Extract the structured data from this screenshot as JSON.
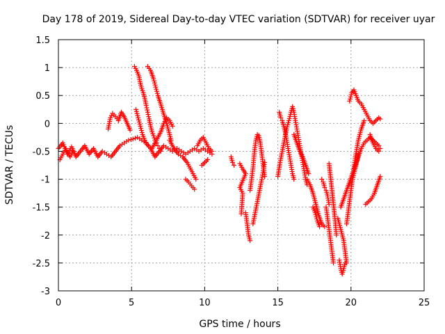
{
  "chart_data": {
    "type": "scatter",
    "title": "Day 178 of 2019, Sidereal Day-to-day VTEC variation (SDTVAR) for receiver uyar",
    "xlabel": "GPS time / hours",
    "ylabel": "SDTVAR / TECUs",
    "xlim": [
      0,
      25
    ],
    "ylim": [
      -3,
      1.5
    ],
    "xticks": [
      "0",
      "5",
      "10",
      "15",
      "20",
      "25"
    ],
    "yticks": [
      "1.5",
      "1",
      "0.5",
      "0",
      "-0.5",
      "-1",
      "-1.5",
      "-2",
      "-2.5",
      "-3"
    ],
    "grid": true,
    "marker": "+",
    "color": "#ff0000",
    "series": [
      {
        "name": "SDTVAR",
        "segments": [
          [
            [
              0.0,
              -0.45
            ],
            [
              0.3,
              -0.35
            ],
            [
              0.6,
              -0.55
            ],
            [
              0.9,
              -0.42
            ],
            [
              1.2,
              -0.6
            ],
            [
              1.5,
              -0.5
            ],
            [
              1.8,
              -0.4
            ],
            [
              2.1,
              -0.55
            ],
            [
              2.4,
              -0.45
            ],
            [
              2.7,
              -0.6
            ],
            [
              3.0,
              -0.5
            ],
            [
              3.3,
              -0.55
            ],
            [
              3.6,
              -0.6
            ],
            [
              3.9,
              -0.5
            ],
            [
              4.2,
              -0.4
            ],
            [
              4.5,
              -0.35
            ],
            [
              4.8,
              -0.3
            ],
            [
              5.1,
              -0.28
            ],
            [
              5.4,
              -0.25
            ],
            [
              5.7,
              -0.3
            ],
            [
              6.0,
              -0.35
            ],
            [
              6.3,
              -0.45
            ],
            [
              6.6,
              -0.6
            ],
            [
              6.9,
              -0.5
            ],
            [
              7.2,
              -0.4
            ],
            [
              7.5,
              -0.45
            ],
            [
              7.8,
              -0.5
            ],
            [
              8.1,
              -0.45
            ],
            [
              8.4,
              -0.5
            ],
            [
              8.7,
              -0.55
            ],
            [
              9.0,
              -0.5
            ],
            [
              9.3,
              -0.45
            ],
            [
              9.6,
              -0.5
            ],
            [
              9.9,
              -0.45
            ],
            [
              10.2,
              -0.5
            ],
            [
              10.5,
              -0.55
            ]
          ],
          [
            [
              3.4,
              -0.1
            ],
            [
              3.55,
              0.1
            ],
            [
              3.7,
              0.18
            ],
            [
              3.9,
              0.12
            ],
            [
              4.1,
              0.05
            ],
            [
              4.3,
              0.2
            ],
            [
              4.5,
              0.12
            ],
            [
              4.7,
              0.0
            ],
            [
              4.9,
              -0.12
            ]
          ],
          [
            [
              0.1,
              -0.65
            ],
            [
              0.3,
              -0.55
            ],
            [
              0.5,
              -0.45
            ],
            [
              0.8,
              -0.6
            ],
            [
              1.0,
              -0.5
            ]
          ],
          [
            [
              5.2,
              1.02
            ],
            [
              5.35,
              0.95
            ],
            [
              5.5,
              0.85
            ],
            [
              5.6,
              0.72
            ],
            [
              5.7,
              0.62
            ],
            [
              5.8,
              0.55
            ],
            [
              5.9,
              0.45
            ],
            [
              6.0,
              0.32
            ],
            [
              6.1,
              0.2
            ],
            [
              6.2,
              0.08
            ],
            [
              6.3,
              -0.05
            ],
            [
              6.4,
              -0.15
            ],
            [
              6.5,
              -0.22
            ],
            [
              6.6,
              -0.3
            ],
            [
              6.7,
              -0.35
            ],
            [
              6.8,
              -0.4
            ],
            [
              6.9,
              -0.45
            ],
            [
              7.0,
              -0.5
            ]
          ],
          [
            [
              6.1,
              1.02
            ],
            [
              6.3,
              0.95
            ],
            [
              6.5,
              0.8
            ],
            [
              6.65,
              0.65
            ],
            [
              6.8,
              0.5
            ],
            [
              6.95,
              0.38
            ],
            [
              7.1,
              0.25
            ],
            [
              7.25,
              0.12
            ],
            [
              7.4,
              0.0
            ],
            [
              7.5,
              -0.1
            ],
            [
              7.6,
              -0.2
            ],
            [
              7.7,
              -0.3
            ]
          ],
          [
            [
              5.3,
              0.25
            ],
            [
              5.45,
              0.1
            ],
            [
              5.6,
              -0.05
            ],
            [
              5.75,
              -0.2
            ],
            [
              5.9,
              -0.3
            ],
            [
              6.05,
              -0.38
            ]
          ],
          [
            [
              6.4,
              -0.45
            ],
            [
              6.7,
              -0.3
            ],
            [
              7.0,
              -0.15
            ],
            [
              7.2,
              0.0
            ],
            [
              7.4,
              0.1
            ],
            [
              7.6,
              0.05
            ],
            [
              7.8,
              -0.05
            ]
          ],
          [
            [
              7.6,
              -0.3
            ],
            [
              7.9,
              -0.45
            ],
            [
              8.2,
              -0.55
            ],
            [
              8.5,
              -0.6
            ],
            [
              8.8,
              -0.7
            ],
            [
              9.0,
              -0.8
            ],
            [
              9.2,
              -0.9
            ],
            [
              9.4,
              -1.0
            ]
          ],
          [
            [
              8.7,
              -1.0
            ],
            [
              8.9,
              -1.05
            ],
            [
              9.1,
              -1.12
            ],
            [
              9.3,
              -1.18
            ]
          ],
          [
            [
              9.5,
              -0.4
            ],
            [
              9.7,
              -0.3
            ],
            [
              9.9,
              -0.25
            ],
            [
              10.1,
              -0.35
            ],
            [
              10.3,
              -0.45
            ],
            [
              10.5,
              -0.5
            ]
          ],
          [
            [
              9.8,
              -0.75
            ],
            [
              10.0,
              -0.7
            ],
            [
              10.2,
              -0.65
            ]
          ],
          [
            [
              11.8,
              -0.6
            ],
            [
              11.9,
              -0.7
            ],
            [
              12.0,
              -0.75
            ]
          ],
          [
            [
              12.4,
              -0.72
            ],
            [
              12.6,
              -0.82
            ],
            [
              12.8,
              -0.9
            ],
            [
              12.4,
              -1.15
            ],
            [
              12.6,
              -1.25
            ],
            [
              12.5,
              -1.62
            ]
          ],
          [
            [
              12.8,
              -1.6
            ],
            [
              12.9,
              -1.8
            ],
            [
              13.0,
              -2.0
            ],
            [
              13.1,
              -2.1
            ]
          ],
          [
            [
              13.1,
              -1.2
            ],
            [
              13.2,
              -1.0
            ],
            [
              13.3,
              -0.8
            ],
            [
              13.4,
              -0.5
            ],
            [
              13.5,
              -0.3
            ],
            [
              13.6,
              -0.2
            ],
            [
              13.7,
              -0.22
            ],
            [
              13.8,
              -0.35
            ],
            [
              13.9,
              -0.55
            ],
            [
              14.0,
              -0.75
            ],
            [
              14.1,
              -0.95
            ]
          ],
          [
            [
              13.3,
              -1.8
            ],
            [
              13.45,
              -1.6
            ],
            [
              13.6,
              -1.4
            ],
            [
              13.75,
              -1.2
            ],
            [
              13.9,
              -1.0
            ],
            [
              14.0,
              -0.85
            ],
            [
              14.1,
              -0.7
            ]
          ],
          [
            [
              15.0,
              -0.95
            ],
            [
              15.15,
              -0.7
            ],
            [
              15.3,
              -0.5
            ],
            [
              15.45,
              -0.3
            ],
            [
              15.6,
              -0.1
            ],
            [
              15.75,
              0.05
            ],
            [
              15.9,
              0.2
            ],
            [
              16.0,
              0.3
            ],
            [
              16.1,
              0.2
            ],
            [
              16.2,
              0.05
            ],
            [
              16.3,
              -0.1
            ],
            [
              16.4,
              -0.25
            ],
            [
              16.5,
              -0.4
            ],
            [
              16.6,
              -0.55
            ],
            [
              16.7,
              -0.7
            ],
            [
              16.8,
              -0.85
            ],
            [
              16.9,
              -1.0
            ],
            [
              17.0,
              -1.1
            ]
          ],
          [
            [
              15.1,
              0.2
            ],
            [
              15.2,
              0.1
            ],
            [
              15.3,
              0.05
            ],
            [
              15.4,
              -0.05
            ],
            [
              15.5,
              -0.15
            ],
            [
              15.6,
              -0.3
            ],
            [
              15.7,
              -0.45
            ],
            [
              15.8,
              -0.6
            ],
            [
              15.9,
              -0.75
            ],
            [
              16.0,
              -0.9
            ],
            [
              16.1,
              -1.0
            ]
          ],
          [
            [
              16.1,
              -0.2
            ],
            [
              16.3,
              -0.35
            ],
            [
              16.5,
              -0.5
            ],
            [
              16.7,
              -0.6
            ],
            [
              16.9,
              -0.75
            ],
            [
              17.1,
              -0.9
            ]
          ],
          [
            [
              17.0,
              -1.0
            ],
            [
              17.2,
              -1.1
            ],
            [
              17.4,
              -1.25
            ],
            [
              17.6,
              -1.45
            ],
            [
              17.8,
              -1.65
            ],
            [
              18.0,
              -1.8
            ],
            [
              18.2,
              -1.85
            ]
          ],
          [
            [
              17.4,
              -1.5
            ],
            [
              17.55,
              -1.6
            ],
            [
              17.7,
              -1.75
            ],
            [
              17.85,
              -1.85
            ]
          ],
          [
            [
              18.0,
              -1.0
            ],
            [
              18.1,
              -1.05
            ],
            [
              18.2,
              -1.15
            ],
            [
              18.3,
              -1.2
            ],
            [
              18.4,
              -1.3
            ],
            [
              18.5,
              -1.45
            ]
          ],
          [
            [
              18.3,
              -1.5
            ],
            [
              18.4,
              -1.7
            ],
            [
              18.5,
              -1.9
            ],
            [
              18.6,
              -2.1
            ],
            [
              18.7,
              -2.3
            ],
            [
              18.8,
              -2.5
            ]
          ],
          [
            [
              18.5,
              -0.72
            ],
            [
              18.7,
              -1.2
            ],
            [
              18.9,
              -1.7
            ],
            [
              19.0,
              -2.0
            ]
          ],
          [
            [
              19.1,
              -1.7
            ],
            [
              19.3,
              -1.9
            ],
            [
              19.5,
              -2.1
            ],
            [
              19.6,
              -2.3
            ],
            [
              19.7,
              -2.5
            ]
          ],
          [
            [
              19.2,
              -2.45
            ],
            [
              19.3,
              -2.6
            ],
            [
              19.4,
              -2.7
            ],
            [
              19.5,
              -2.6
            ],
            [
              19.6,
              -2.5
            ]
          ],
          [
            [
              19.3,
              -1.5
            ],
            [
              19.5,
              -1.35
            ],
            [
              19.7,
              -1.2
            ],
            [
              19.9,
              -1.05
            ],
            [
              20.1,
              -0.9
            ],
            [
              20.3,
              -0.75
            ],
            [
              20.5,
              -0.6
            ],
            [
              20.7,
              -0.45
            ],
            [
              20.9,
              -0.35
            ],
            [
              21.1,
              -0.3
            ],
            [
              21.3,
              -0.25
            ],
            [
              21.5,
              -0.3
            ],
            [
              21.7,
              -0.35
            ],
            [
              21.9,
              -0.4
            ],
            [
              22.0,
              -0.45
            ]
          ],
          [
            [
              19.7,
              -1.8
            ],
            [
              19.85,
              -1.5
            ],
            [
              20.0,
              -1.2
            ],
            [
              20.15,
              -0.9
            ],
            [
              20.3,
              -0.6
            ],
            [
              20.5,
              -0.3
            ],
            [
              20.7,
              -0.1
            ],
            [
              20.9,
              0.05
            ]
          ],
          [
            [
              19.9,
              0.4
            ],
            [
              20.05,
              0.55
            ],
            [
              20.2,
              0.6
            ],
            [
              20.35,
              0.5
            ],
            [
              20.5,
              0.4
            ],
            [
              20.7,
              0.35
            ],
            [
              20.9,
              0.25
            ],
            [
              21.1,
              0.15
            ],
            [
              21.3,
              0.05
            ],
            [
              21.5,
              0.0
            ],
            [
              21.7,
              0.05
            ],
            [
              21.9,
              0.1
            ],
            [
              22.0,
              0.08
            ]
          ],
          [
            [
              21.3,
              -0.2
            ],
            [
              21.5,
              -0.35
            ],
            [
              21.7,
              -0.45
            ],
            [
              21.9,
              -0.5
            ]
          ],
          [
            [
              21.0,
              -1.45
            ],
            [
              21.2,
              -1.4
            ],
            [
              21.4,
              -1.35
            ],
            [
              21.6,
              -1.25
            ],
            [
              21.8,
              -1.1
            ],
            [
              22.0,
              -0.95
            ]
          ],
          [
            [
              20.1,
              -1.0
            ],
            [
              20.3,
              -0.8
            ],
            [
              20.5,
              -0.55
            ]
          ]
        ]
      }
    ]
  }
}
